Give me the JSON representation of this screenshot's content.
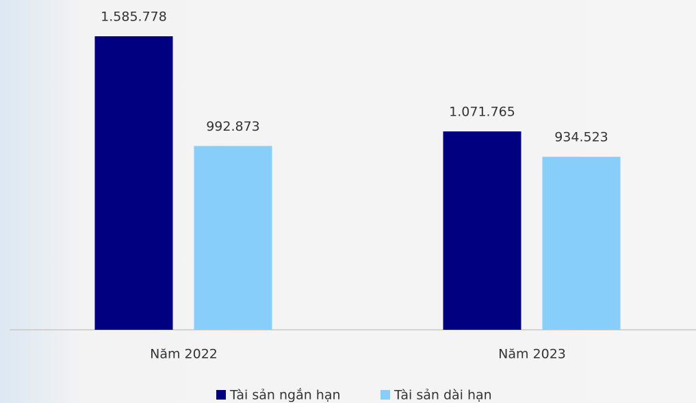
{
  "chart_data": {
    "type": "bar",
    "categories": [
      "Năm 2022",
      "Năm 2023"
    ],
    "series": [
      {
        "name": "Tài sản ngắn hạn",
        "color": "#000080",
        "values": [
          1585778,
          1071765
        ],
        "value_labels": [
          "1.585.778",
          "1.071.765"
        ]
      },
      {
        "name": "Tài sản dài hạn",
        "color": "#87cefa",
        "values": [
          992873,
          934523
        ],
        "value_labels": [
          "992.873",
          "934.523"
        ]
      }
    ]
  }
}
